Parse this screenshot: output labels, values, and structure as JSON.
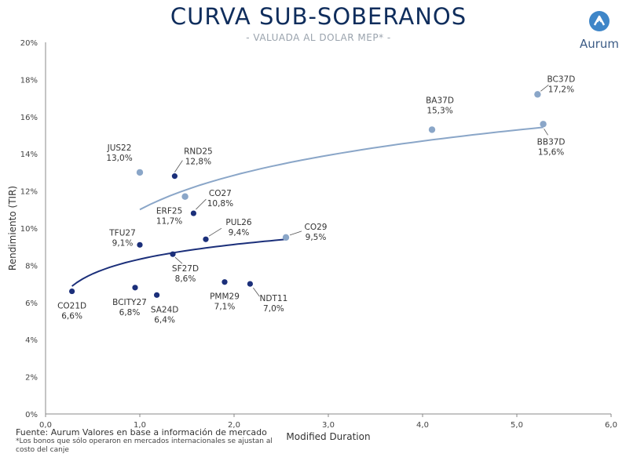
{
  "header": {
    "title": "CURVA SUB-SOBERANOS",
    "subtitle": "- VALUADA AL DOLAR MEP* -",
    "logo_text": "Aurum"
  },
  "footer": {
    "source": "Fuente: Aurum Valores en base a información de mercado",
    "note": "*Los bonos que sólo operaron en mercados internacionales se ajustan al costo del canje"
  },
  "colors": {
    "dark_series": "#1b2f7a",
    "light_series": "#8aa6c8",
    "axis": "#666666"
  },
  "chart_data": {
    "type": "scatter",
    "xlabel": "Modified Duration",
    "ylabel": "Rendimiento (TIR)",
    "xlim": [
      0,
      6
    ],
    "ylim": [
      0,
      20
    ],
    "x_ticks": [
      "0,0",
      "1,0",
      "2,0",
      "3,0",
      "4,0",
      "5,0",
      "6,0"
    ],
    "y_ticks": [
      "0%",
      "2%",
      "4%",
      "6%",
      "8%",
      "10%",
      "12%",
      "14%",
      "16%",
      "18%",
      "20%"
    ],
    "series": [
      {
        "group": "dark",
        "points": [
          {
            "label": "CO21D",
            "value": "6,6%",
            "x": 0.28,
            "y": 6.6
          },
          {
            "label": "TFU27",
            "value": "9,1%",
            "x": 1.0,
            "y": 9.1
          },
          {
            "label": "BCITY27",
            "value": "6,8%",
            "x": 0.95,
            "y": 6.8
          },
          {
            "label": "SA24D",
            "value": "6,4%",
            "x": 1.18,
            "y": 6.4
          },
          {
            "label": "SF27D",
            "value": "8,6%",
            "x": 1.35,
            "y": 8.6
          },
          {
            "label": "RND25",
            "value": "12,8%",
            "x": 1.37,
            "y": 12.8
          },
          {
            "label": "CO27",
            "value": "10,8%",
            "x": 1.57,
            "y": 10.8
          },
          {
            "label": "PUL26",
            "value": "9,4%",
            "x": 1.7,
            "y": 9.4
          },
          {
            "label": "PMM29",
            "value": "7,1%",
            "x": 1.9,
            "y": 7.1
          },
          {
            "label": "NDT11",
            "value": "7,0%",
            "x": 2.17,
            "y": 7.0
          }
        ]
      },
      {
        "group": "light",
        "points": [
          {
            "label": "JUS22",
            "value": "13,0%",
            "x": 1.0,
            "y": 13.0
          },
          {
            "label": "ERF25",
            "value": "11,7%",
            "x": 1.48,
            "y": 11.7
          },
          {
            "label": "CO29",
            "value": "9,5%",
            "x": 2.55,
            "y": 9.5
          },
          {
            "label": "BA37D",
            "value": "15,3%",
            "x": 4.1,
            "y": 15.3
          },
          {
            "label": "BC37D",
            "value": "17,2%",
            "x": 5.22,
            "y": 17.2
          },
          {
            "label": "BB37D",
            "value": "15,6%",
            "x": 5.28,
            "y": 15.6
          }
        ]
      }
    ],
    "trendlines": [
      {
        "group": "dark",
        "type": "log",
        "x_range": [
          0.28,
          2.55
        ],
        "a": 8.33,
        "b": 1.14
      },
      {
        "group": "light",
        "type": "log",
        "x_range": [
          1.0,
          5.28
        ],
        "a": 11.0,
        "b": 2.66
      }
    ]
  }
}
